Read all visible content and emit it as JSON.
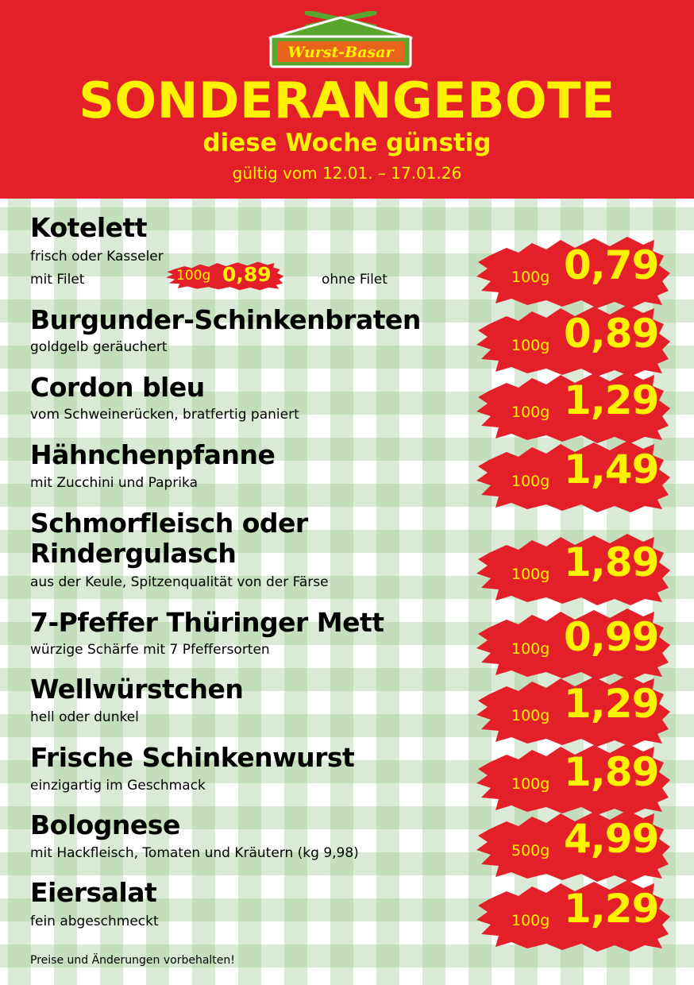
{
  "header": {
    "logo_text": "Wurst-Basar",
    "title": "SONDERANGEBOTE",
    "subtitle": "diese Woche günstig",
    "validity": "gültig vom 12.01. – 17.01.26"
  },
  "colors": {
    "header_red": "#e3202a",
    "accent_yellow": "#fff200",
    "logo_green": "#5aa52e",
    "check_green": "#cfe3c5"
  },
  "items": [
    {
      "name": "Kotelett",
      "description": "frisch oder Kasseler",
      "description2": "mit Filet",
      "alt_unit": "100g",
      "alt_price": "0,89",
      "note": "ohne Filet",
      "unit": "100g",
      "price": "0,79"
    },
    {
      "name": "Burgunder-Schinkenbraten",
      "description": "goldgelb geräuchert",
      "unit": "100g",
      "price": "0,89"
    },
    {
      "name": "Cordon bleu",
      "description": "vom Schweinerücken, bratfertig paniert",
      "unit": "100g",
      "price": "1,29"
    },
    {
      "name": "Hähnchenpfanne",
      "description": "mit Zucchini und Paprika",
      "unit": "100g",
      "price": "1,49"
    },
    {
      "name": "Schmorfleisch oder",
      "name2": "Rindergulasch",
      "description": "aus der Keule, Spitzenqualität von der Färse",
      "unit": "100g",
      "price": "1,89"
    },
    {
      "name": "7-Pfeffer Thüringer Mett",
      "description": "würzige Schärfe mit 7 Pfeffersorten",
      "unit": "100g",
      "price": "0,99"
    },
    {
      "name": "Wellwürstchen",
      "description": "hell oder dunkel",
      "unit": "100g",
      "price": "1,29"
    },
    {
      "name": "Frische Schinkenwurst",
      "description": "einzigartig im Geschmack",
      "unit": "100g",
      "price": "1,89"
    },
    {
      "name": "Bolognese",
      "description": "mit Hackfleisch, Tomaten und Kräutern (kg 9,98)",
      "unit": "500g",
      "price": "4,99"
    },
    {
      "name": "Eiersalat",
      "description": "fein abgeschmeckt",
      "unit": "100g",
      "price": "1,29"
    }
  ],
  "footer": "Preise und Änderungen vorbehalten!"
}
